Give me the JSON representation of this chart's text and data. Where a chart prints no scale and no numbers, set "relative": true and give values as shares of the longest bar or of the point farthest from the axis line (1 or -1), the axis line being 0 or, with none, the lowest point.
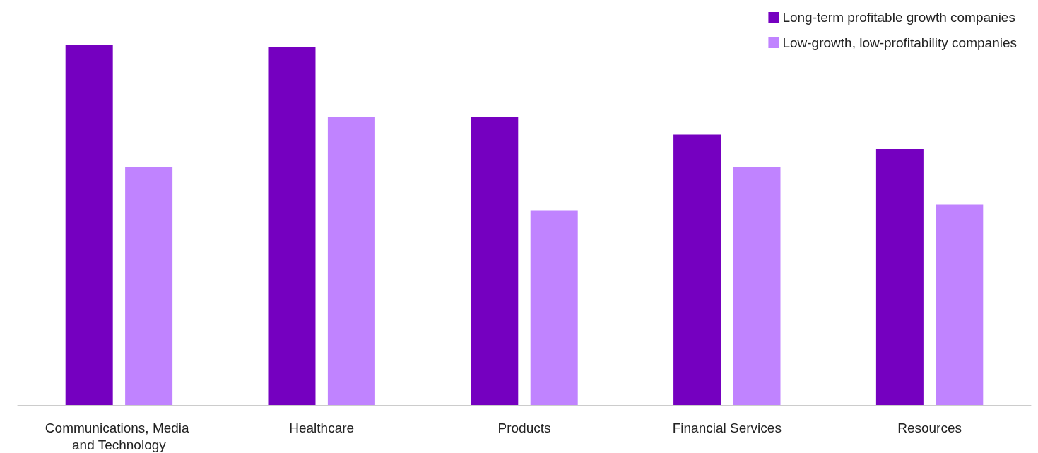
{
  "chart_data": {
    "type": "bar",
    "relative": true,
    "legend": "top right",
    "categories": [
      "Communications, Media and Technology",
      "Healthcare",
      "Products",
      "Financial Services",
      "Resources"
    ],
    "series": [
      {
        "name": "Long-term profitable growth companies",
        "color": "#7500c0",
        "values": [
          1,
          0.994,
          0.8,
          0.75,
          0.71
        ]
      },
      {
        "name": "Low-growth, low-profitability companies",
        "color": "#c083ff",
        "values": [
          0.659,
          0.8,
          0.54,
          0.661,
          0.556
        ]
      }
    ]
  }
}
